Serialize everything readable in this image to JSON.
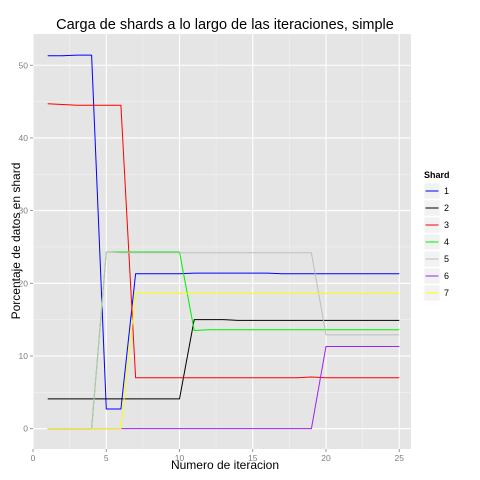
{
  "chart_data": {
    "type": "line",
    "title": "Carga de shards a lo largo de las iteraciones, simple",
    "xlabel": "Numero de iteracion",
    "ylabel": "Porcentaje de datos en shard",
    "xlim": [
      0,
      25.8
    ],
    "ylim": [
      -2.8,
      54.3
    ],
    "x_ticks": [
      0,
      5,
      10,
      15,
      20,
      25
    ],
    "y_ticks": [
      0,
      10,
      20,
      30,
      40,
      50
    ],
    "grid": true,
    "legend": {
      "title": "Shard",
      "placement": "right"
    },
    "x": [
      1,
      2,
      3,
      4,
      5,
      6,
      7,
      8,
      9,
      10,
      11,
      12,
      13,
      14,
      15,
      16,
      17,
      18,
      19,
      20,
      21,
      22,
      23,
      24,
      25
    ],
    "series": [
      {
        "name": "1",
        "color": "#0000ff",
        "values": [
          51.3,
          51.3,
          51.4,
          51.4,
          2.7,
          2.7,
          21.3,
          21.3,
          21.3,
          21.3,
          21.4,
          21.4,
          21.4,
          21.4,
          21.4,
          21.4,
          21.3,
          21.3,
          21.3,
          21.3,
          21.3,
          21.3,
          21.3,
          21.3,
          21.3
        ]
      },
      {
        "name": "2",
        "color": "#000000",
        "values": [
          4.1,
          4.1,
          4.1,
          4.1,
          4.1,
          4.1,
          4.1,
          4.1,
          4.1,
          4.1,
          15.0,
          15.0,
          15.0,
          14.9,
          14.9,
          14.9,
          14.9,
          14.9,
          14.9,
          14.9,
          14.9,
          14.9,
          14.9,
          14.9,
          14.9
        ]
      },
      {
        "name": "3",
        "color": "#ff0000",
        "values": [
          44.7,
          44.6,
          44.5,
          44.5,
          44.5,
          44.5,
          7.0,
          7.0,
          7.0,
          7.0,
          7.0,
          7.0,
          7.0,
          7.0,
          7.0,
          7.0,
          7.0,
          7.0,
          7.1,
          7.0,
          7.0,
          7.0,
          7.0,
          7.0,
          7.0
        ]
      },
      {
        "name": "4",
        "color": "#00ee00",
        "values": [
          0.0,
          0.0,
          0.0,
          0.0,
          24.3,
          24.3,
          24.3,
          24.3,
          24.3,
          24.3,
          13.5,
          13.6,
          13.6,
          13.6,
          13.6,
          13.6,
          13.6,
          13.6,
          13.6,
          13.6,
          13.6,
          13.6,
          13.6,
          13.6,
          13.6
        ]
      },
      {
        "name": "5",
        "color": "#bebebe",
        "values": [
          0.0,
          0.0,
          0.0,
          0.0,
          24.3,
          24.2,
          24.2,
          24.2,
          24.2,
          24.2,
          24.2,
          24.2,
          24.2,
          24.2,
          24.2,
          24.2,
          24.2,
          24.2,
          24.2,
          12.9,
          12.9,
          12.9,
          12.9,
          12.9,
          12.9
        ]
      },
      {
        "name": "6",
        "color": "#a020f0",
        "values": [
          0.0,
          0.0,
          0.0,
          0.0,
          0.0,
          0.0,
          0.0,
          0.0,
          0.0,
          0.0,
          0.0,
          0.0,
          0.0,
          0.0,
          0.0,
          0.0,
          0.0,
          0.0,
          0.0,
          11.3,
          11.3,
          11.3,
          11.3,
          11.3,
          11.3
        ]
      },
      {
        "name": "7",
        "color": "#ffff00",
        "values": [
          0.0,
          0.0,
          0.0,
          0.0,
          0.0,
          0.0,
          18.6,
          18.6,
          18.6,
          18.6,
          18.6,
          18.6,
          18.6,
          18.6,
          18.6,
          18.6,
          18.6,
          18.6,
          18.6,
          18.6,
          18.6,
          18.6,
          18.6,
          18.6,
          18.6
        ]
      }
    ]
  }
}
